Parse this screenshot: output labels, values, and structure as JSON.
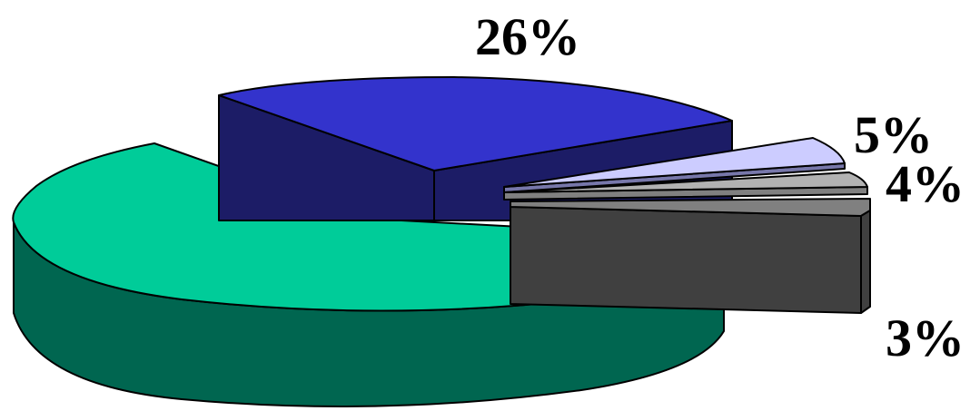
{
  "chart_data": {
    "type": "pie",
    "style": "3d-exploded",
    "title": "",
    "legend": "none",
    "slices": [
      {
        "key": "s1",
        "value": 62,
        "label": "",
        "color": "#00cc99",
        "side_color": "#006650"
      },
      {
        "key": "s2",
        "value": 26,
        "label": "26%",
        "color": "#3333cc",
        "side_color": "#1c1c66"
      },
      {
        "key": "s3",
        "value": 5,
        "label": "5%",
        "color": "#ccccff",
        "side_color": "#7777aa"
      },
      {
        "key": "s4",
        "value": 4,
        "label": "4%",
        "color": "#b2b2b2",
        "side_color": "#808080"
      },
      {
        "key": "s5",
        "value": 3,
        "label": "3%",
        "color": "#808080",
        "side_color": "#404040"
      }
    ]
  }
}
